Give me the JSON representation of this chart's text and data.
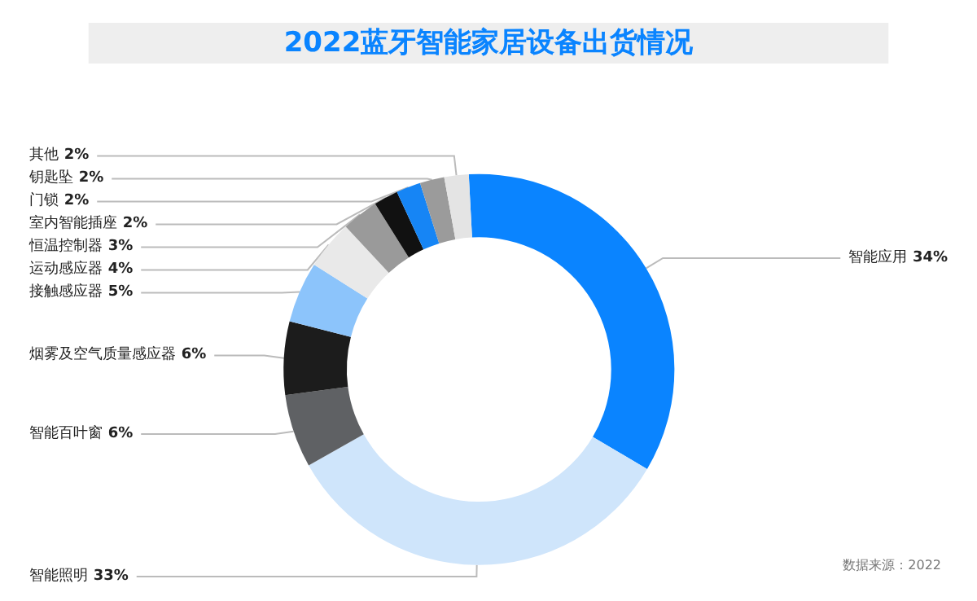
{
  "chart_data": {
    "type": "donut",
    "title": "2022蓝牙智能家居设备出货情况",
    "categories": [
      "智能应用",
      "智能照明",
      "智能百叶窗",
      "烟雾及空气质量感应器",
      "接触感应器",
      "运动感应器",
      "恒温控制器",
      "室内智能插座",
      "门锁",
      "钥匙坠",
      "其他"
    ],
    "values": [
      34,
      33,
      6,
      6,
      5,
      4,
      3,
      2,
      2,
      2,
      2
    ],
    "value_labels": [
      "34%",
      "33%",
      "6%",
      "6%",
      "5%",
      "4%",
      "3%",
      "2%",
      "2%",
      "2%",
      "2%"
    ],
    "colors": [
      "#0a84ff",
      "#cfe5fb",
      "#5f6164",
      "#1c1c1c",
      "#8cc4fb",
      "#e9e9e9",
      "#9a9a9a",
      "#111111",
      "#1685f5",
      "#9b9b9b",
      "#e4e4e4"
    ],
    "legend": false,
    "annotations": [
      "数据来源：2022"
    ]
  }
}
